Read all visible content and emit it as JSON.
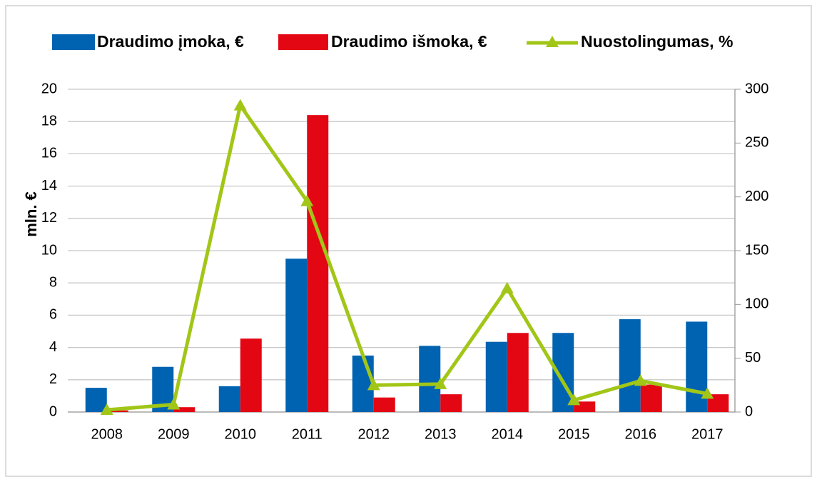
{
  "chart_data": {
    "type": "bar",
    "y_label": "mln. €",
    "categories": [
      "2008",
      "2009",
      "2010",
      "2011",
      "2012",
      "2013",
      "2014",
      "2015",
      "2016",
      "2017"
    ],
    "series": [
      {
        "name": "Draudimo įmoka, €",
        "color": "#0063b1",
        "type": "bar",
        "values": [
          1.5,
          2.8,
          1.6,
          9.5,
          3.5,
          4.1,
          4.35,
          4.9,
          5.75,
          5.6
        ]
      },
      {
        "name": "Draudimo išmoka, €",
        "color": "#e30613",
        "type": "bar",
        "values": [
          0.1,
          0.3,
          4.55,
          18.4,
          0.9,
          1.1,
          4.9,
          0.65,
          1.7,
          1.1
        ]
      },
      {
        "name": "Nuostolingumas, %",
        "color": "#a2c617",
        "type": "line",
        "axis": "y2",
        "values": [
          2,
          7,
          285,
          196,
          25,
          26,
          115,
          11,
          29,
          17
        ]
      }
    ],
    "ylim": [
      0,
      20
    ],
    "yticks": [
      0,
      2,
      4,
      6,
      8,
      10,
      12,
      14,
      16,
      18,
      20
    ],
    "y2lim": [
      0,
      300
    ],
    "y2ticks": [
      0,
      50,
      100,
      150,
      200,
      250,
      300
    ],
    "grid": true,
    "legend": "top"
  }
}
